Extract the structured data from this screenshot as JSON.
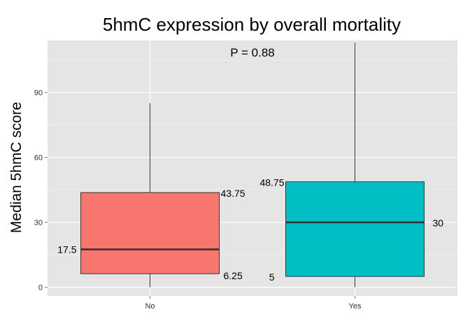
{
  "chart_data": {
    "type": "box",
    "title": "5hmC expression by overall mortality",
    "xlabel": "",
    "ylabel": "Median 5hmC score",
    "annotation": "P = 0.88",
    "ylim": [
      -4,
      114
    ],
    "yticks": [
      0,
      30,
      60,
      90
    ],
    "grid": true,
    "categories": [
      "No",
      "Yes"
    ],
    "boxes": [
      {
        "category": "No",
        "min": 0,
        "q1": 6.25,
        "median": 17.5,
        "q3": 43.75,
        "max": 85,
        "color": "#F8766D",
        "labels": {
          "q1": "6.25",
          "median": "17.5",
          "q3": "43.75"
        }
      },
      {
        "category": "Yes",
        "min": 0,
        "q1": 5,
        "median": 30,
        "q3": 48.75,
        "max": 113,
        "color": "#00BFC4",
        "labels": {
          "q1": "5",
          "median": "30",
          "q3": "48.75"
        }
      }
    ]
  }
}
